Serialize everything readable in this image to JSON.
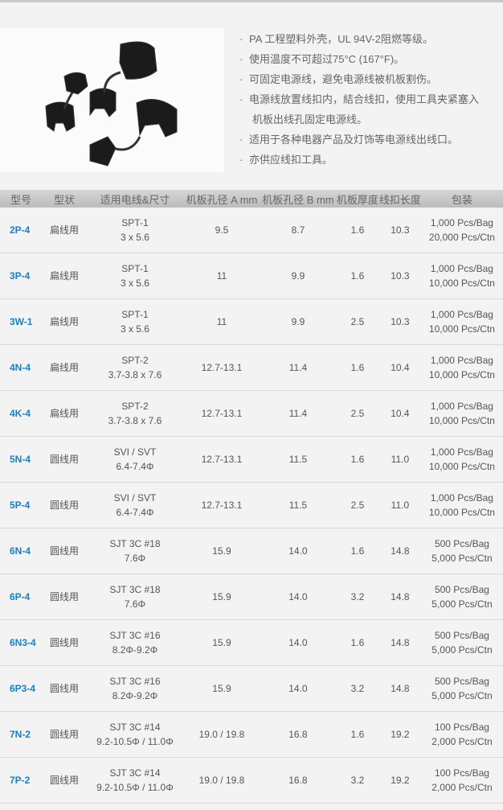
{
  "features": [
    "PA 工程塑料外壳，UL 94V-2阻燃等级。",
    "使用温度不可超过75°C (167°F)。",
    "可固定电源线，避免电源线被机板割伤。",
    "电源线放置线扣内，結合线扣，使用工具夹紧塞入",
    "机板出线孔固定电源线。",
    "适用于各种电器产品及灯饰等电源线出线口。",
    "亦供应线扣工具。"
  ],
  "table": {
    "headers": [
      "型号",
      "型状",
      "适用电线&尺寸",
      "机板孔径 A mm",
      "机板孔径 B mm",
      "机板厚度",
      "线扣长度",
      "包装"
    ],
    "rows": [
      {
        "model": "2P-4",
        "shape": "扁线用",
        "wire1": "SPT-1",
        "wire2": "3 x 5.6",
        "a": "9.5",
        "b": "8.7",
        "t": "1.6",
        "len": "10.3",
        "pack1": "1,000 Pcs/Bag",
        "pack2": "20,000 Pcs/Ctn"
      },
      {
        "model": "3P-4",
        "shape": "扁线用",
        "wire1": "SPT-1",
        "wire2": "3 x 5.6",
        "a": "11",
        "b": "9.9",
        "t": "1.6",
        "len": "10.3",
        "pack1": "1,000 Pcs/Bag",
        "pack2": "10,000 Pcs/Ctn"
      },
      {
        "model": "3W-1",
        "shape": "扁线用",
        "wire1": "SPT-1",
        "wire2": "3 x 5.6",
        "a": "11",
        "b": "9.9",
        "t": "2.5",
        "len": "10.3",
        "pack1": "1,000 Pcs/Bag",
        "pack2": "10,000 Pcs/Ctn"
      },
      {
        "model": "4N-4",
        "shape": "扁线用",
        "wire1": "SPT-2",
        "wire2": "3.7-3.8 x 7.6",
        "a": "12.7-13.1",
        "b": "11.4",
        "t": "1.6",
        "len": "10.4",
        "pack1": "1,000 Pcs/Bag",
        "pack2": "10,000 Pcs/Ctn"
      },
      {
        "model": "4K-4",
        "shape": "扁线用",
        "wire1": "SPT-2",
        "wire2": "3.7-3.8 x 7.6",
        "a": "12.7-13.1",
        "b": "11.4",
        "t": "2.5",
        "len": "10.4",
        "pack1": "1,000 Pcs/Bag",
        "pack2": "10,000 Pcs/Ctn"
      },
      {
        "model": "5N-4",
        "shape": "圆线用",
        "wire1": "SVI / SVT",
        "wire2": "6.4-7.4Φ",
        "a": "12.7-13.1",
        "b": "11.5",
        "t": "1.6",
        "len": "11.0",
        "pack1": "1,000 Pcs/Bag",
        "pack2": "10,000 Pcs/Ctn"
      },
      {
        "model": "5P-4",
        "shape": "圆线用",
        "wire1": "SVI / SVT",
        "wire2": "6.4-7.4Φ",
        "a": "12.7-13.1",
        "b": "11.5",
        "t": "2.5",
        "len": "11.0",
        "pack1": "1,000 Pcs/Bag",
        "pack2": "10,000 Pcs/Ctn"
      },
      {
        "model": "6N-4",
        "shape": "圆线用",
        "wire1": "SJT 3C #18",
        "wire2": "7.6Φ",
        "a": "15.9",
        "b": "14.0",
        "t": "1.6",
        "len": "14.8",
        "pack1": "500 Pcs/Bag",
        "pack2": "5,000 Pcs/Ctn"
      },
      {
        "model": "6P-4",
        "shape": "圆线用",
        "wire1": "SJT 3C #18",
        "wire2": "7.6Φ",
        "a": "15.9",
        "b": "14.0",
        "t": "3.2",
        "len": "14.8",
        "pack1": "500 Pcs/Bag",
        "pack2": "5,000 Pcs/Ctn"
      },
      {
        "model": "6N3-4",
        "shape": "圆线用",
        "wire1": "SJT 3C #16",
        "wire2": "8.2Φ-9.2Φ",
        "a": "15.9",
        "b": "14.0",
        "t": "1.6",
        "len": "14.8",
        "pack1": "500 Pcs/Bag",
        "pack2": "5,000 Pcs/Ctn"
      },
      {
        "model": "6P3-4",
        "shape": "圆线用",
        "wire1": "SJT 3C #16",
        "wire2": "8.2Φ-9.2Φ",
        "a": "15.9",
        "b": "14.0",
        "t": "3.2",
        "len": "14.8",
        "pack1": "500 Pcs/Bag",
        "pack2": "5,000 Pcs/Ctn"
      },
      {
        "model": "7N-2",
        "shape": "圆线用",
        "wire1": "SJT 3C #14",
        "wire2": "9.2-10.5Φ / 11.0Φ",
        "a": "19.0 / 19.8",
        "b": "16.8",
        "t": "1.6",
        "len": "19.2",
        "pack1": "100 Pcs/Bag",
        "pack2": "2,000 Pcs/Ctn"
      },
      {
        "model": "7P-2",
        "shape": "圆线用",
        "wire1": "SJT 3C #14",
        "wire2": "9.2-10.5Φ / 11.0Φ",
        "a": "19.0 / 19.8",
        "b": "16.8",
        "t": "3.2",
        "len": "19.2",
        "pack1": "100 Pcs/Bag",
        "pack2": "2,000 Pcs/Ctn"
      }
    ]
  }
}
